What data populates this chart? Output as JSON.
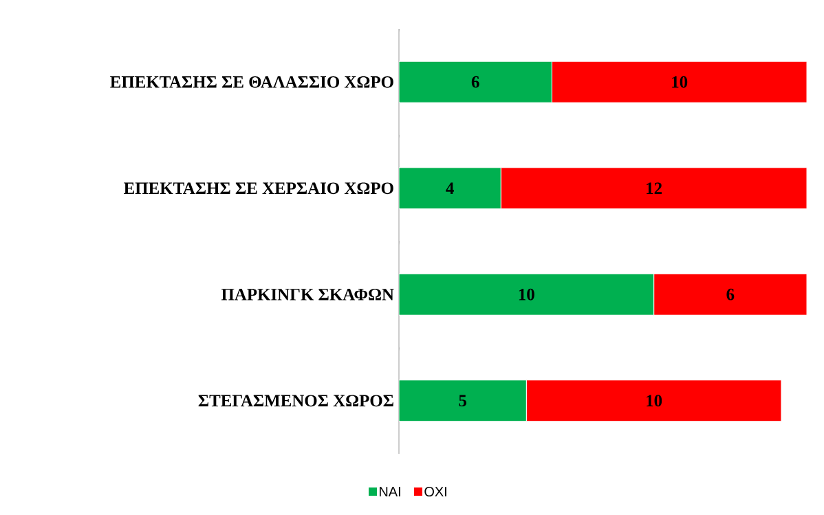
{
  "chart_data": {
    "type": "bar",
    "orientation": "horizontal",
    "stacked": true,
    "data_labels": true,
    "legend": "bottom",
    "categories": [
      "ΕΠΕΚΤΑΣΗΣ ΣΕ ΘΑΛΑΣΣΙΟ ΧΩΡΟ",
      "ΕΠΕΚΤΑΣΗΣ ΣΕ ΧΕΡΣΑΙΟ ΧΩΡΟ",
      "ΠΑΡΚΙΝΓΚ ΣΚΑΦΩΝ",
      "ΣΤΕΓΑΣΜΕΝΟΣ ΧΩΡΟΣ"
    ],
    "series": [
      {
        "name": "ΝΑΙ",
        "color": "#00b050",
        "values": [
          6,
          4,
          10,
          5
        ]
      },
      {
        "name": "ΟΧΙ",
        "color": "#ff0000",
        "values": [
          10,
          12,
          6,
          10
        ]
      }
    ]
  }
}
